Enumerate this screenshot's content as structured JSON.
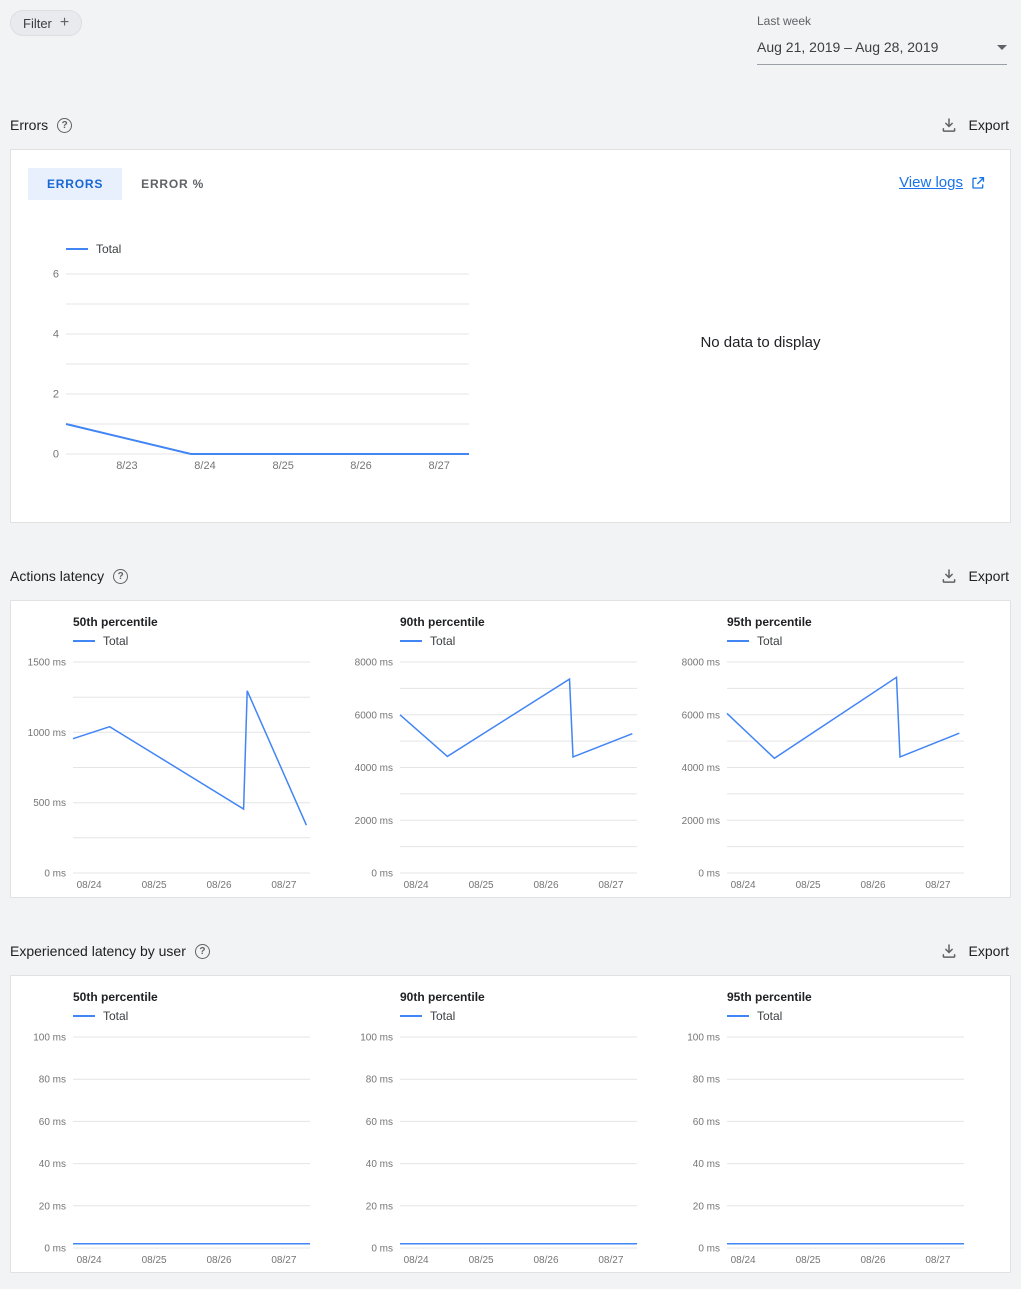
{
  "colors": {
    "accent": "#4285f4",
    "link": "#1a73e8",
    "selected_tab_bg": "#e8f0fe",
    "selected_tab_text": "#1967d2"
  },
  "toolbar": {
    "filter_label": "Filter",
    "date_range_label": "Last week",
    "date_range_value": "Aug 21, 2019 – Aug 28, 2019"
  },
  "sections": {
    "errors": {
      "title": "Errors",
      "export_label": "Export",
      "tabs": [
        {
          "label": "ERRORS"
        },
        {
          "label": "ERROR %"
        }
      ],
      "view_logs_label": "View logs",
      "no_data_text": "No data to display"
    },
    "actions_latency": {
      "title": "Actions latency",
      "export_label": "Export"
    },
    "user_latency": {
      "title": "Experienced latency by user",
      "export_label": "Export"
    }
  },
  "chart_data": [
    {
      "id": "errors-total",
      "type": "line",
      "title": "Errors",
      "legend": "Total",
      "ylim": [
        0,
        6
      ],
      "gridlines": [
        0,
        1,
        2,
        3,
        4,
        5,
        6
      ],
      "y_labels": [
        {
          "v": 0,
          "t": "0"
        },
        {
          "v": 2,
          "t": "2"
        },
        {
          "v": 4,
          "t": "4"
        },
        {
          "v": 6,
          "t": "6"
        }
      ],
      "x_labels": [
        {
          "f": 0.151,
          "t": "8/23"
        },
        {
          "f": 0.345,
          "t": "8/24"
        },
        {
          "f": 0.539,
          "t": "8/25"
        },
        {
          "f": 0.732,
          "t": "8/26"
        },
        {
          "f": 0.926,
          "t": "8/27"
        }
      ],
      "points": [
        [
          0,
          1
        ],
        [
          0.31,
          0
        ],
        [
          1,
          0
        ]
      ],
      "stroke_width": 2
    },
    {
      "id": "actions-latency-50th",
      "type": "line",
      "title": "50th percentile",
      "legend": "Total",
      "ylim": [
        0,
        1500
      ],
      "gridlines": [
        0,
        250,
        500,
        750,
        1000,
        1250,
        1500
      ],
      "y_labels": [
        {
          "v": 0,
          "t": "0 ms"
        },
        {
          "v": 500,
          "t": "500 ms"
        },
        {
          "v": 1000,
          "t": "1000 ms"
        },
        {
          "v": 1500,
          "t": "1500 ms"
        }
      ],
      "x_labels": [
        {
          "f": 0.068,
          "t": "08/24"
        },
        {
          "f": 0.342,
          "t": "08/25"
        },
        {
          "f": 0.616,
          "t": "08/26"
        },
        {
          "f": 0.89,
          "t": "08/27"
        }
      ],
      "points": [
        [
          0,
          955
        ],
        [
          0.155,
          1040
        ],
        [
          0.72,
          455
        ],
        [
          0.735,
          1295
        ],
        [
          0.985,
          340
        ]
      ]
    },
    {
      "id": "actions-latency-90th",
      "type": "line",
      "title": "90th percentile",
      "legend": "Total",
      "ylim": [
        0,
        8000
      ],
      "gridlines": [
        0,
        1000,
        2000,
        3000,
        4000,
        5000,
        6000,
        7000,
        8000
      ],
      "y_labels": [
        {
          "v": 0,
          "t": "0 ms"
        },
        {
          "v": 2000,
          "t": "2000 ms"
        },
        {
          "v": 4000,
          "t": "4000 ms"
        },
        {
          "v": 6000,
          "t": "6000 ms"
        },
        {
          "v": 8000,
          "t": "8000 ms"
        }
      ],
      "x_labels": [
        {
          "f": 0.068,
          "t": "08/24"
        },
        {
          "f": 0.342,
          "t": "08/25"
        },
        {
          "f": 0.616,
          "t": "08/26"
        },
        {
          "f": 0.89,
          "t": "08/27"
        }
      ],
      "points": [
        [
          0,
          6000
        ],
        [
          0.2,
          4420
        ],
        [
          0.715,
          7350
        ],
        [
          0.73,
          4400
        ],
        [
          0.98,
          5280
        ]
      ]
    },
    {
      "id": "actions-latency-95th",
      "type": "line",
      "title": "95th percentile",
      "legend": "Total",
      "ylim": [
        0,
        8000
      ],
      "gridlines": [
        0,
        1000,
        2000,
        3000,
        4000,
        5000,
        6000,
        7000,
        8000
      ],
      "y_labels": [
        {
          "v": 0,
          "t": "0 ms"
        },
        {
          "v": 2000,
          "t": "2000 ms"
        },
        {
          "v": 4000,
          "t": "4000 ms"
        },
        {
          "v": 6000,
          "t": "6000 ms"
        },
        {
          "v": 8000,
          "t": "8000 ms"
        }
      ],
      "x_labels": [
        {
          "f": 0.068,
          "t": "08/24"
        },
        {
          "f": 0.342,
          "t": "08/25"
        },
        {
          "f": 0.616,
          "t": "08/26"
        },
        {
          "f": 0.89,
          "t": "08/27"
        }
      ],
      "points": [
        [
          0,
          6050
        ],
        [
          0.2,
          4350
        ],
        [
          0.715,
          7420
        ],
        [
          0.73,
          4400
        ],
        [
          0.98,
          5300
        ]
      ]
    },
    {
      "id": "user-latency-50th",
      "type": "line",
      "title": "50th percentile",
      "legend": "Total",
      "ylim": [
        0,
        100
      ],
      "gridlines": [
        0,
        20,
        40,
        60,
        80,
        100
      ],
      "y_labels": [
        {
          "v": 0,
          "t": "0 ms"
        },
        {
          "v": 20,
          "t": "20 ms"
        },
        {
          "v": 40,
          "t": "40 ms"
        },
        {
          "v": 60,
          "t": "60 ms"
        },
        {
          "v": 80,
          "t": "80 ms"
        },
        {
          "v": 100,
          "t": "100 ms"
        }
      ],
      "x_labels": [
        {
          "f": 0.068,
          "t": "08/24"
        },
        {
          "f": 0.342,
          "t": "08/25"
        },
        {
          "f": 0.616,
          "t": "08/26"
        },
        {
          "f": 0.89,
          "t": "08/27"
        }
      ],
      "points": [
        [
          0,
          2
        ],
        [
          1,
          2
        ]
      ]
    },
    {
      "id": "user-latency-90th",
      "type": "line",
      "title": "90th percentile",
      "legend": "Total",
      "ylim": [
        0,
        100
      ],
      "gridlines": [
        0,
        20,
        40,
        60,
        80,
        100
      ],
      "y_labels": [
        {
          "v": 0,
          "t": "0 ms"
        },
        {
          "v": 20,
          "t": "20 ms"
        },
        {
          "v": 40,
          "t": "40 ms"
        },
        {
          "v": 60,
          "t": "60 ms"
        },
        {
          "v": 80,
          "t": "80 ms"
        },
        {
          "v": 100,
          "t": "100 ms"
        }
      ],
      "x_labels": [
        {
          "f": 0.068,
          "t": "08/24"
        },
        {
          "f": 0.342,
          "t": "08/25"
        },
        {
          "f": 0.616,
          "t": "08/26"
        },
        {
          "f": 0.89,
          "t": "08/27"
        }
      ],
      "points": [
        [
          0,
          2
        ],
        [
          1,
          2
        ]
      ]
    },
    {
      "id": "user-latency-95th",
      "type": "line",
      "title": "95th percentile",
      "legend": "Total",
      "ylim": [
        0,
        100
      ],
      "gridlines": [
        0,
        20,
        40,
        60,
        80,
        100
      ],
      "y_labels": [
        {
          "v": 0,
          "t": "0 ms"
        },
        {
          "v": 20,
          "t": "20 ms"
        },
        {
          "v": 40,
          "t": "40 ms"
        },
        {
          "v": 60,
          "t": "60 ms"
        },
        {
          "v": 80,
          "t": "80 ms"
        },
        {
          "v": 100,
          "t": "100 ms"
        }
      ],
      "x_labels": [
        {
          "f": 0.068,
          "t": "08/24"
        },
        {
          "f": 0.342,
          "t": "08/25"
        },
        {
          "f": 0.616,
          "t": "08/26"
        },
        {
          "f": 0.89,
          "t": "08/27"
        }
      ],
      "points": [
        [
          0,
          2
        ],
        [
          1,
          2
        ]
      ]
    }
  ]
}
